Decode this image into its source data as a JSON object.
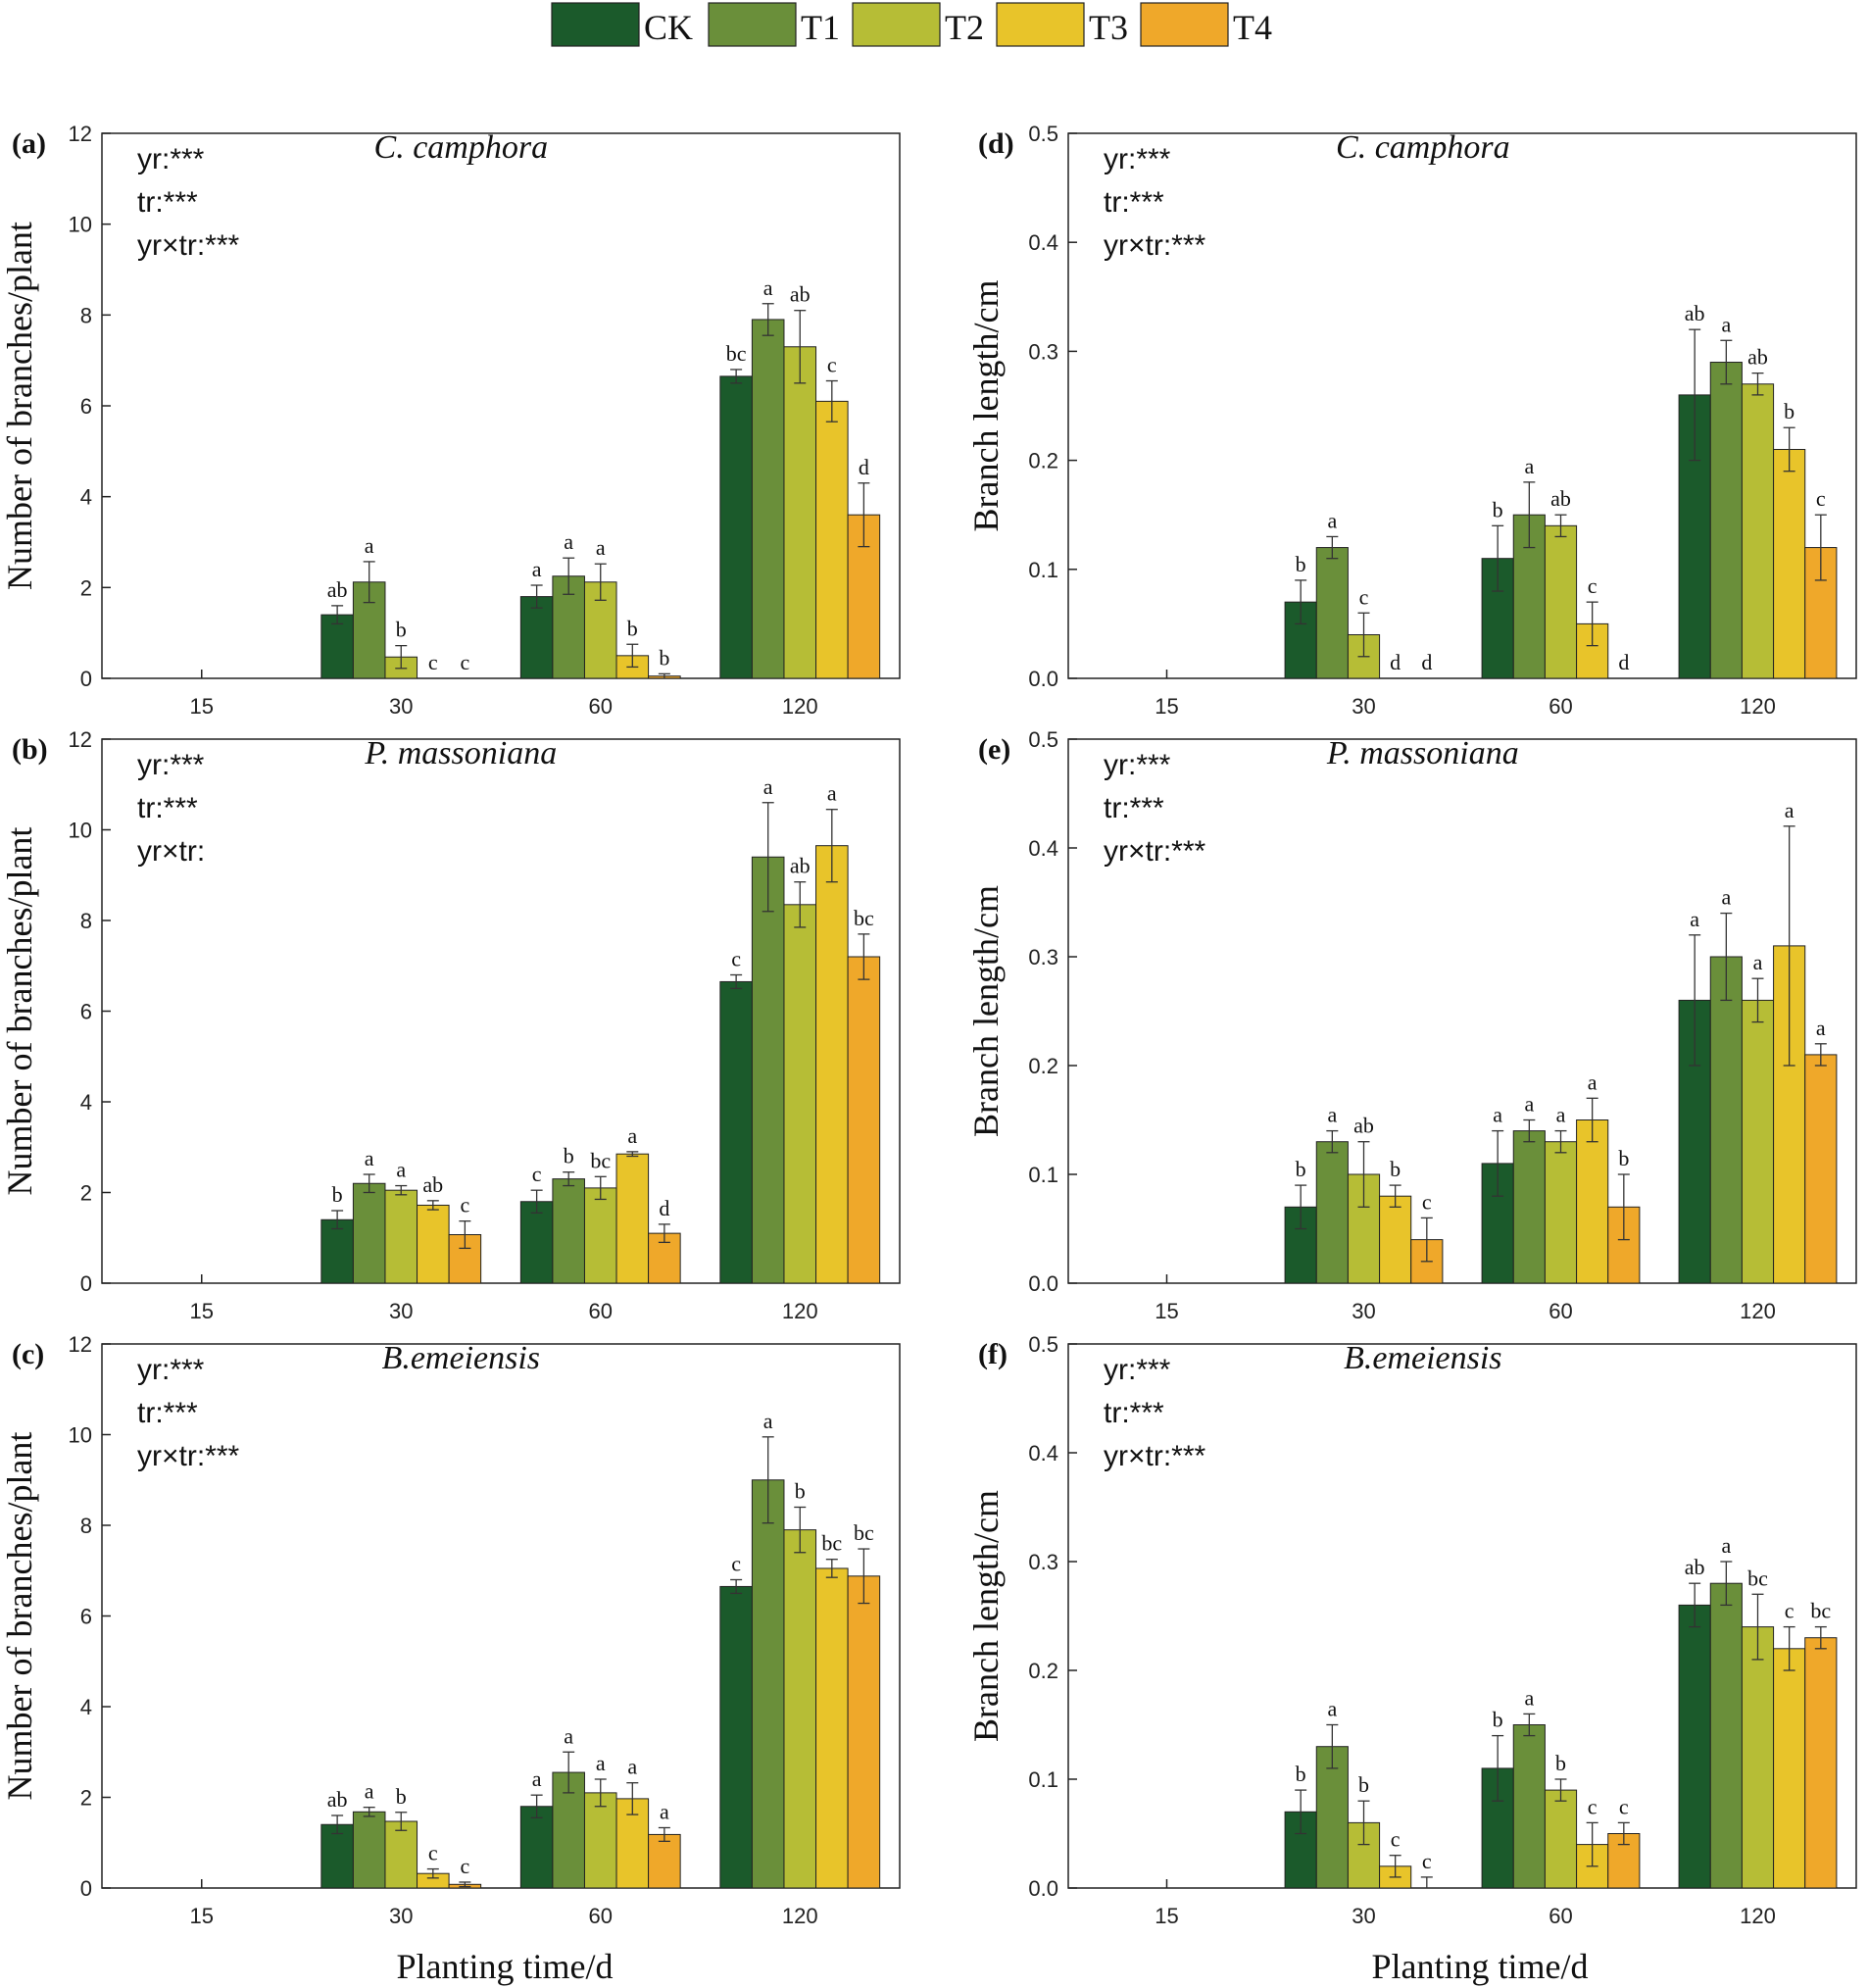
{
  "legend": [
    {
      "label": "CK",
      "color": "#1b5a2b"
    },
    {
      "label": "T1",
      "color": "#6a8f3a"
    },
    {
      "label": "T2",
      "color": "#b6bd36"
    },
    {
      "label": "T3",
      "color": "#e8c42a"
    },
    {
      "label": "T4",
      "color": "#efa82a"
    }
  ],
  "xlabel": "Planting time/d",
  "chart_data": [
    {
      "type": "bar",
      "panel": "(a)",
      "title": "C. camphora",
      "ylabel": "Number of branches/plant",
      "ylim": [
        0,
        12
      ],
      "yticks": [
        "0",
        "2",
        "4",
        "6",
        "8",
        "10",
        "12"
      ],
      "categories": [
        "15",
        "30",
        "60",
        "120"
      ],
      "stats": [
        "yr:***",
        "tr:***",
        "yr×tr:***"
      ],
      "series": [
        {
          "name": "CK",
          "values": [
            0,
            1.4,
            1.8,
            6.65
          ],
          "err": [
            0,
            0.2,
            0.25,
            0.15
          ],
          "sig": [
            "",
            "ab",
            "a",
            "bc"
          ]
        },
        {
          "name": "T1",
          "values": [
            0,
            2.12,
            2.25,
            7.9
          ],
          "err": [
            0,
            0.45,
            0.4,
            0.35
          ],
          "sig": [
            "",
            "a",
            "a",
            "a"
          ]
        },
        {
          "name": "T2",
          "values": [
            0,
            0.47,
            2.12,
            7.3
          ],
          "err": [
            0,
            0.25,
            0.4,
            0.8
          ],
          "sig": [
            "",
            "b",
            "a",
            "ab"
          ]
        },
        {
          "name": "T3",
          "values": [
            0,
            0,
            0.5,
            6.1
          ],
          "err": [
            0,
            0,
            0.25,
            0.45
          ],
          "sig": [
            "",
            "c",
            "b",
            "c"
          ]
        },
        {
          "name": "T4",
          "values": [
            0,
            0,
            0.05,
            3.6
          ],
          "err": [
            0,
            0,
            0.05,
            0.7
          ],
          "sig": [
            "",
            "c",
            "b",
            "d"
          ]
        }
      ]
    },
    {
      "type": "bar",
      "panel": "(b)",
      "title": "P. massoniana",
      "ylabel": "Number of branches/plant",
      "ylim": [
        0,
        12
      ],
      "yticks": [
        "0",
        "2",
        "4",
        "6",
        "8",
        "10",
        "12"
      ],
      "categories": [
        "15",
        "30",
        "60",
        "120"
      ],
      "stats": [
        "yr:***",
        "tr:***",
        "yr×tr:"
      ],
      "series": [
        {
          "name": "CK",
          "values": [
            0,
            1.4,
            1.8,
            6.65
          ],
          "err": [
            0,
            0.2,
            0.25,
            0.15
          ],
          "sig": [
            "",
            "b",
            "c",
            "c"
          ]
        },
        {
          "name": "T1",
          "values": [
            0,
            2.2,
            2.3,
            9.4
          ],
          "err": [
            0,
            0.2,
            0.15,
            1.2
          ],
          "sig": [
            "",
            "a",
            "b",
            "a"
          ]
        },
        {
          "name": "T2",
          "values": [
            0,
            2.05,
            2.1,
            8.35
          ],
          "err": [
            0,
            0.1,
            0.25,
            0.5
          ],
          "sig": [
            "",
            "a",
            "bc",
            "ab"
          ]
        },
        {
          "name": "T3",
          "values": [
            0,
            1.72,
            2.85,
            9.65
          ],
          "err": [
            0,
            0.1,
            0.05,
            0.8
          ],
          "sig": [
            "",
            "ab",
            "a",
            "a"
          ]
        },
        {
          "name": "T4",
          "values": [
            0,
            1.07,
            1.1,
            7.2
          ],
          "err": [
            0,
            0.3,
            0.2,
            0.5
          ],
          "sig": [
            "",
            "c",
            "d",
            "bc"
          ]
        }
      ]
    },
    {
      "type": "bar",
      "panel": "(c)",
      "title": "B.emeiensis",
      "ylabel": "Number of branches/plant",
      "ylim": [
        0,
        12
      ],
      "yticks": [
        "0",
        "2",
        "4",
        "6",
        "8",
        "10",
        "12"
      ],
      "categories": [
        "15",
        "30",
        "60",
        "120"
      ],
      "stats": [
        "yr:***",
        "tr:***",
        "yr×tr:***"
      ],
      "series": [
        {
          "name": "CK",
          "values": [
            0,
            1.4,
            1.8,
            6.65
          ],
          "err": [
            0,
            0.2,
            0.25,
            0.15
          ],
          "sig": [
            "",
            "ab",
            "a",
            "c"
          ]
        },
        {
          "name": "T1",
          "values": [
            0,
            1.68,
            2.55,
            9.0
          ],
          "err": [
            0,
            0.1,
            0.45,
            0.95
          ],
          "sig": [
            "",
            "a",
            "a",
            "a"
          ]
        },
        {
          "name": "T2",
          "values": [
            0,
            1.47,
            2.1,
            7.9
          ],
          "err": [
            0,
            0.2,
            0.3,
            0.5
          ],
          "sig": [
            "",
            "b",
            "a",
            "b"
          ]
        },
        {
          "name": "T3",
          "values": [
            0,
            0.32,
            1.97,
            7.05
          ],
          "err": [
            0,
            0.1,
            0.35,
            0.2
          ],
          "sig": [
            "",
            "c",
            "a",
            "bc"
          ]
        },
        {
          "name": "T4",
          "values": [
            0,
            0.08,
            1.18,
            6.88
          ],
          "err": [
            0,
            0.05,
            0.15,
            0.6
          ],
          "sig": [
            "",
            "c",
            "a",
            "bc"
          ]
        }
      ]
    },
    {
      "type": "bar",
      "panel": "(d)",
      "title": "C. camphora",
      "ylabel": "Branch length/cm",
      "ylim": [
        0,
        0.5
      ],
      "yticks": [
        "0.0",
        "0.1",
        "0.2",
        "0.3",
        "0.4",
        "0.5"
      ],
      "categories": [
        "15",
        "30",
        "60",
        "120"
      ],
      "stats": [
        "yr:***",
        "tr:***",
        "yr×tr:***"
      ],
      "series": [
        {
          "name": "CK",
          "values": [
            0,
            0.07,
            0.11,
            0.26
          ],
          "err": [
            0,
            0.02,
            0.03,
            0.06
          ],
          "sig": [
            "",
            "b",
            "b",
            "ab"
          ]
        },
        {
          "name": "T1",
          "values": [
            0,
            0.12,
            0.15,
            0.29
          ],
          "err": [
            0,
            0.01,
            0.03,
            0.02
          ],
          "sig": [
            "",
            "a",
            "a",
            "a"
          ]
        },
        {
          "name": "T2",
          "values": [
            0,
            0.04,
            0.14,
            0.27
          ],
          "err": [
            0,
            0.02,
            0.01,
            0.01
          ],
          "sig": [
            "",
            "c",
            "ab",
            "ab"
          ]
        },
        {
          "name": "T3",
          "values": [
            0,
            0,
            0.05,
            0.21
          ],
          "err": [
            0,
            0,
            0.02,
            0.02
          ],
          "sig": [
            "",
            "d",
            "c",
            "b"
          ]
        },
        {
          "name": "T4",
          "values": [
            0,
            0,
            0,
            0.12
          ],
          "err": [
            0,
            0,
            0,
            0.03
          ],
          "sig": [
            "",
            "d",
            "d",
            "c"
          ]
        }
      ]
    },
    {
      "type": "bar",
      "panel": "(e)",
      "title": "P. massoniana",
      "ylabel": "Branch length/cm",
      "ylim": [
        0,
        0.5
      ],
      "yticks": [
        "0.0",
        "0.1",
        "0.2",
        "0.3",
        "0.4",
        "0.5"
      ],
      "categories": [
        "15",
        "30",
        "60",
        "120"
      ],
      "stats": [
        "yr:***",
        "tr:***",
        "yr×tr:***"
      ],
      "series": [
        {
          "name": "CK",
          "values": [
            0,
            0.07,
            0.11,
            0.26
          ],
          "err": [
            0,
            0.02,
            0.03,
            0.06
          ],
          "sig": [
            "",
            "b",
            "a",
            "a"
          ]
        },
        {
          "name": "T1",
          "values": [
            0,
            0.13,
            0.14,
            0.3
          ],
          "err": [
            0,
            0.01,
            0.01,
            0.04
          ],
          "sig": [
            "",
            "a",
            "a",
            "a"
          ]
        },
        {
          "name": "T2",
          "values": [
            0,
            0.1,
            0.13,
            0.26
          ],
          "err": [
            0,
            0.03,
            0.01,
            0.02
          ],
          "sig": [
            "",
            "ab",
            "a",
            "a"
          ]
        },
        {
          "name": "T3",
          "values": [
            0,
            0.08,
            0.15,
            0.31
          ],
          "err": [
            0,
            0.01,
            0.02,
            0.11
          ],
          "sig": [
            "",
            "b",
            "a",
            "a"
          ]
        },
        {
          "name": "T4",
          "values": [
            0,
            0.04,
            0.07,
            0.21
          ],
          "err": [
            0,
            0.02,
            0.03,
            0.01
          ],
          "sig": [
            "",
            "c",
            "b",
            "a"
          ]
        }
      ]
    },
    {
      "type": "bar",
      "panel": "(f)",
      "title": "B.emeiensis",
      "ylabel": "Branch length/cm",
      "ylim": [
        0,
        0.5
      ],
      "yticks": [
        "0.0",
        "0.1",
        "0.2",
        "0.3",
        "0.4",
        "0.5"
      ],
      "categories": [
        "15",
        "30",
        "60",
        "120"
      ],
      "stats": [
        "yr:***",
        "tr:***",
        "yr×tr:***"
      ],
      "series": [
        {
          "name": "CK",
          "values": [
            0,
            0.07,
            0.11,
            0.26
          ],
          "err": [
            0,
            0.02,
            0.03,
            0.02
          ],
          "sig": [
            "",
            "b",
            "b",
            "ab"
          ]
        },
        {
          "name": "T1",
          "values": [
            0,
            0.13,
            0.15,
            0.28
          ],
          "err": [
            0,
            0.02,
            0.01,
            0.02
          ],
          "sig": [
            "",
            "a",
            "a",
            "a"
          ]
        },
        {
          "name": "T2",
          "values": [
            0,
            0.06,
            0.09,
            0.24
          ],
          "err": [
            0,
            0.02,
            0.01,
            0.03
          ],
          "sig": [
            "",
            "b",
            "b",
            "bc"
          ]
        },
        {
          "name": "T3",
          "values": [
            0,
            0.02,
            0.04,
            0.22
          ],
          "err": [
            0,
            0.01,
            0.02,
            0.02
          ],
          "sig": [
            "",
            "c",
            "c",
            "c"
          ]
        },
        {
          "name": "T4",
          "values": [
            0,
            0,
            0.05,
            0.23
          ],
          "err": [
            0,
            0.01,
            0.01,
            0.01
          ],
          "sig": [
            "",
            "c",
            "c",
            "bc"
          ]
        }
      ]
    }
  ]
}
